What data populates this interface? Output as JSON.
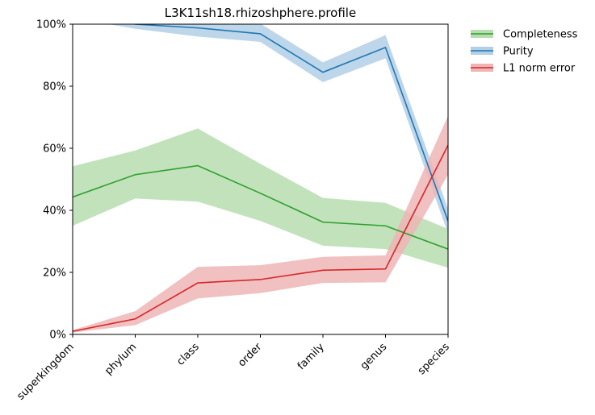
{
  "chart_data": {
    "type": "line",
    "title": "L3K11sh18.rhizoshphere.profile",
    "xlabel": "",
    "ylabel": "",
    "categories": [
      "superkingdom",
      "phylum",
      "class",
      "order",
      "family",
      "genus",
      "species"
    ],
    "ylim": [
      0,
      1
    ],
    "yticks": [
      0,
      0.2,
      0.4,
      0.6,
      0.8,
      1.0
    ],
    "ytick_labels": [
      "0%",
      "20%",
      "40%",
      "60%",
      "80%",
      "100%"
    ],
    "grid": false,
    "legend_position": "outside-top-right",
    "series": [
      {
        "name": "Completeness",
        "color": "#2ca02c",
        "band_color": "#b7ddb0",
        "values": [
          0.443,
          0.515,
          0.544,
          0.455,
          0.362,
          0.35,
          0.275
        ],
        "upper": [
          0.542,
          0.593,
          0.664,
          0.55,
          0.44,
          0.424,
          0.34
        ],
        "lower": [
          0.35,
          0.438,
          0.428,
          0.366,
          0.286,
          0.275,
          0.215
        ]
      },
      {
        "name": "Purity",
        "color": "#1f77b4",
        "band_color": "#b2cfe6",
        "values": [
          1.05,
          1.0,
          0.988,
          0.969,
          0.845,
          0.925,
          0.365
        ],
        "upper": [
          1.08,
          1.02,
          1.012,
          1.002,
          0.877,
          0.965,
          0.405
        ],
        "lower": [
          1.02,
          0.985,
          0.96,
          0.943,
          0.813,
          0.89,
          0.325
        ]
      },
      {
        "name": "L1 norm error",
        "color": "#d62728",
        "band_color": "#efb5b5",
        "values": [
          0.01,
          0.05,
          0.166,
          0.177,
          0.207,
          0.211,
          0.61
        ],
        "upper": [
          0.014,
          0.075,
          0.218,
          0.223,
          0.25,
          0.255,
          0.705
        ],
        "lower": [
          0.006,
          0.03,
          0.116,
          0.133,
          0.166,
          0.168,
          0.515
        ]
      }
    ]
  }
}
